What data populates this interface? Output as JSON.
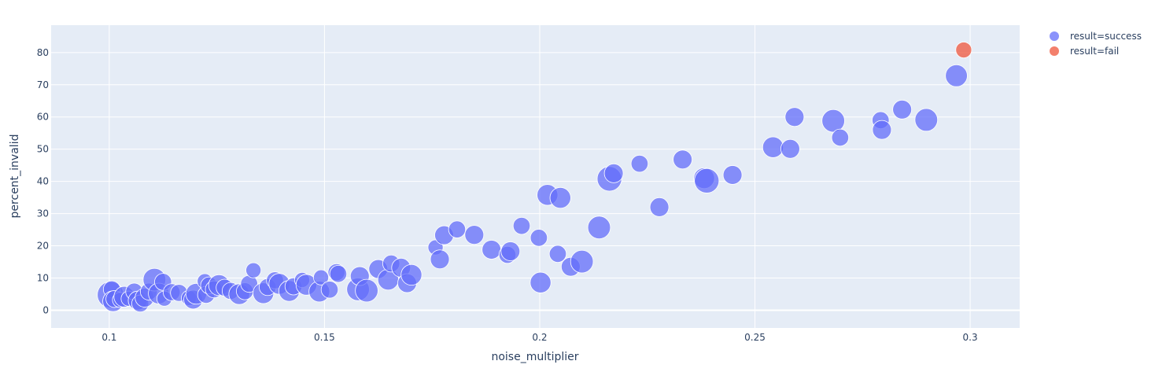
{
  "chart_data": {
    "type": "scatter",
    "title": "",
    "xlabel": "noise_multiplier",
    "ylabel": "percent_invalid",
    "xlim": [
      0.0865,
      0.3115
    ],
    "ylim": [
      -5.5,
      88.5
    ],
    "x_ticks": [
      0.1,
      0.15,
      0.2,
      0.25,
      0.3
    ],
    "x_tick_labels": [
      "0.1",
      "0.15",
      "0.2",
      "0.25",
      "0.3"
    ],
    "y_ticks": [
      0,
      10,
      20,
      30,
      40,
      50,
      60,
      70,
      80
    ],
    "y_tick_labels": [
      "0",
      "10",
      "20",
      "30",
      "40",
      "50",
      "60",
      "70",
      "80"
    ],
    "grid": true,
    "plot_background": "#e5ecf6",
    "legend_position": "right",
    "marker_size_note": "relative size per point",
    "series": [
      {
        "name": "result=success",
        "color": "#636efa",
        "points": [
          {
            "x": 0.1003,
            "y": 4.8,
            "s": 0.7
          },
          {
            "x": 0.1006,
            "y": 6.5,
            "s": 0.45
          },
          {
            "x": 0.1009,
            "y": 2.8,
            "s": 0.55
          },
          {
            "x": 0.1012,
            "y": 3.5,
            "s": 0.45
          },
          {
            "x": 0.1025,
            "y": 3.2,
            "s": 0.4
          },
          {
            "x": 0.1035,
            "y": 4.2,
            "s": 0.55
          },
          {
            "x": 0.1045,
            "y": 3.6,
            "s": 0.4
          },
          {
            "x": 0.1058,
            "y": 5.8,
            "s": 0.45
          },
          {
            "x": 0.1066,
            "y": 3.0,
            "s": 0.5
          },
          {
            "x": 0.1072,
            "y": 2.1,
            "s": 0.45
          },
          {
            "x": 0.1082,
            "y": 3.9,
            "s": 0.5
          },
          {
            "x": 0.1092,
            "y": 5.8,
            "s": 0.45
          },
          {
            "x": 0.1105,
            "y": 9.5,
            "s": 0.6
          },
          {
            "x": 0.1115,
            "y": 5.2,
            "s": 0.55
          },
          {
            "x": 0.1125,
            "y": 8.8,
            "s": 0.45
          },
          {
            "x": 0.1128,
            "y": 3.6,
            "s": 0.4
          },
          {
            "x": 0.1145,
            "y": 5.6,
            "s": 0.45
          },
          {
            "x": 0.1162,
            "y": 5.4,
            "s": 0.45
          },
          {
            "x": 0.1185,
            "y": 3.8,
            "s": 0.4
          },
          {
            "x": 0.1195,
            "y": 3.3,
            "s": 0.5
          },
          {
            "x": 0.1202,
            "y": 5.1,
            "s": 0.55
          },
          {
            "x": 0.1222,
            "y": 9.0,
            "s": 0.4
          },
          {
            "x": 0.1225,
            "y": 4.8,
            "s": 0.45
          },
          {
            "x": 0.1232,
            "y": 7.7,
            "s": 0.45
          },
          {
            "x": 0.1243,
            "y": 6.5,
            "s": 0.45
          },
          {
            "x": 0.1255,
            "y": 7.8,
            "s": 0.55
          },
          {
            "x": 0.1268,
            "y": 7.0,
            "s": 0.45
          },
          {
            "x": 0.1282,
            "y": 6.0,
            "s": 0.45
          },
          {
            "x": 0.1302,
            "y": 5.0,
            "s": 0.55
          },
          {
            "x": 0.1315,
            "y": 5.9,
            "s": 0.45
          },
          {
            "x": 0.1325,
            "y": 8.2,
            "s": 0.45
          },
          {
            "x": 0.1335,
            "y": 12.4,
            "s": 0.4
          },
          {
            "x": 0.1358,
            "y": 5.3,
            "s": 0.55
          },
          {
            "x": 0.1368,
            "y": 7.2,
            "s": 0.45
          },
          {
            "x": 0.1385,
            "y": 9.3,
            "s": 0.45
          },
          {
            "x": 0.1395,
            "y": 8.2,
            "s": 0.55
          },
          {
            "x": 0.1418,
            "y": 6.0,
            "s": 0.55
          },
          {
            "x": 0.1428,
            "y": 7.4,
            "s": 0.45
          },
          {
            "x": 0.1448,
            "y": 9.4,
            "s": 0.4
          },
          {
            "x": 0.1458,
            "y": 7.9,
            "s": 0.55
          },
          {
            "x": 0.1488,
            "y": 5.8,
            "s": 0.55
          },
          {
            "x": 0.1492,
            "y": 10.2,
            "s": 0.4
          },
          {
            "x": 0.1512,
            "y": 6.4,
            "s": 0.45
          },
          {
            "x": 0.1528,
            "y": 11.8,
            "s": 0.45
          },
          {
            "x": 0.1532,
            "y": 11.3,
            "s": 0.45
          },
          {
            "x": 0.1578,
            "y": 6.5,
            "s": 0.6
          },
          {
            "x": 0.1582,
            "y": 10.6,
            "s": 0.5
          },
          {
            "x": 0.1598,
            "y": 6.1,
            "s": 0.6
          },
          {
            "x": 0.1625,
            "y": 12.8,
            "s": 0.5
          },
          {
            "x": 0.1648,
            "y": 9.5,
            "s": 0.55
          },
          {
            "x": 0.1655,
            "y": 14.5,
            "s": 0.45
          },
          {
            "x": 0.1678,
            "y": 13.2,
            "s": 0.5
          },
          {
            "x": 0.1692,
            "y": 8.4,
            "s": 0.5
          },
          {
            "x": 0.1702,
            "y": 11.0,
            "s": 0.55
          },
          {
            "x": 0.1758,
            "y": 19.5,
            "s": 0.4
          },
          {
            "x": 0.1768,
            "y": 15.8,
            "s": 0.5
          },
          {
            "x": 0.1778,
            "y": 23.3,
            "s": 0.5
          },
          {
            "x": 0.1808,
            "y": 25.1,
            "s": 0.45
          },
          {
            "x": 0.1848,
            "y": 23.4,
            "s": 0.5
          },
          {
            "x": 0.1888,
            "y": 18.8,
            "s": 0.5
          },
          {
            "x": 0.1925,
            "y": 17.2,
            "s": 0.45
          },
          {
            "x": 0.1932,
            "y": 18.3,
            "s": 0.5
          },
          {
            "x": 0.1958,
            "y": 26.2,
            "s": 0.45
          },
          {
            "x": 0.1998,
            "y": 22.5,
            "s": 0.45
          },
          {
            "x": 0.2002,
            "y": 8.6,
            "s": 0.55
          },
          {
            "x": 0.2018,
            "y": 35.8,
            "s": 0.55
          },
          {
            "x": 0.2042,
            "y": 17.5,
            "s": 0.45
          },
          {
            "x": 0.2048,
            "y": 34.9,
            "s": 0.55
          },
          {
            "x": 0.2072,
            "y": 13.5,
            "s": 0.5
          },
          {
            "x": 0.2098,
            "y": 15.1,
            "s": 0.6
          },
          {
            "x": 0.2138,
            "y": 25.7,
            "s": 0.6
          },
          {
            "x": 0.2162,
            "y": 40.8,
            "s": 0.65
          },
          {
            "x": 0.2172,
            "y": 42.5,
            "s": 0.5
          },
          {
            "x": 0.2232,
            "y": 45.5,
            "s": 0.45
          },
          {
            "x": 0.2278,
            "y": 32.0,
            "s": 0.5
          },
          {
            "x": 0.2332,
            "y": 46.8,
            "s": 0.5
          },
          {
            "x": 0.2382,
            "y": 41.0,
            "s": 0.55
          },
          {
            "x": 0.2388,
            "y": 40.2,
            "s": 0.65
          },
          {
            "x": 0.2448,
            "y": 42.0,
            "s": 0.5
          },
          {
            "x": 0.2542,
            "y": 50.6,
            "s": 0.55
          },
          {
            "x": 0.2582,
            "y": 50.1,
            "s": 0.5
          },
          {
            "x": 0.2592,
            "y": 60.0,
            "s": 0.5
          },
          {
            "x": 0.2682,
            "y": 58.8,
            "s": 0.6
          },
          {
            "x": 0.2698,
            "y": 53.6,
            "s": 0.45
          },
          {
            "x": 0.2792,
            "y": 59.0,
            "s": 0.45
          },
          {
            "x": 0.2795,
            "y": 56.0,
            "s": 0.5
          },
          {
            "x": 0.2842,
            "y": 62.3,
            "s": 0.5
          },
          {
            "x": 0.2898,
            "y": 59.1,
            "s": 0.6
          },
          {
            "x": 0.2968,
            "y": 72.8,
            "s": 0.58
          }
        ]
      },
      {
        "name": "result=fail",
        "color": "#ef553b",
        "points": [
          {
            "x": 0.2985,
            "y": 80.8,
            "s": 0.42
          }
        ]
      }
    ]
  }
}
